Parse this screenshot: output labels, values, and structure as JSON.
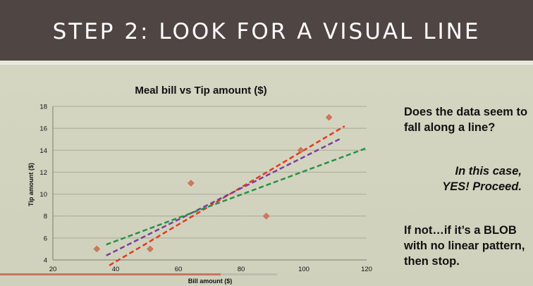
{
  "slide": {
    "title": "STEP 2: LOOK FOR A VISUAL LINE",
    "question": "Does the data seem to fall along a line?",
    "answer_line1": "In this case,",
    "answer_line2": "YES! Proceed.",
    "stop_text": "If not…if it’s a BLOB with no linear pattern, then stop."
  },
  "chart_data": {
    "type": "scatter",
    "title": "Meal bill vs Tip amount ($)",
    "xlabel": "Bill amount ($)",
    "ylabel": "Tip amount ($)",
    "xlim": [
      20,
      120
    ],
    "ylim": [
      4,
      18
    ],
    "xticks": [
      20,
      40,
      60,
      80,
      100,
      120
    ],
    "yticks": [
      4,
      6,
      8,
      10,
      12,
      14,
      16,
      18
    ],
    "grid": "horizontal",
    "points": [
      {
        "x": 34,
        "y": 5
      },
      {
        "x": 51,
        "y": 5
      },
      {
        "x": 64,
        "y": 11
      },
      {
        "x": 88,
        "y": 8
      },
      {
        "x": 99,
        "y": 14
      },
      {
        "x": 108,
        "y": 17
      }
    ],
    "marker_color": "#d2765c",
    "fit_lines": [
      {
        "color": "#e8381d",
        "x": [
          38,
          113
        ],
        "y": [
          3.5,
          16.2
        ]
      },
      {
        "color": "#7b3e9c",
        "x": [
          37,
          112
        ],
        "y": [
          4.4,
          15.1
        ]
      },
      {
        "color": "#239444",
        "x": [
          37,
          120
        ],
        "y": [
          5.4,
          14.2
        ]
      }
    ]
  }
}
